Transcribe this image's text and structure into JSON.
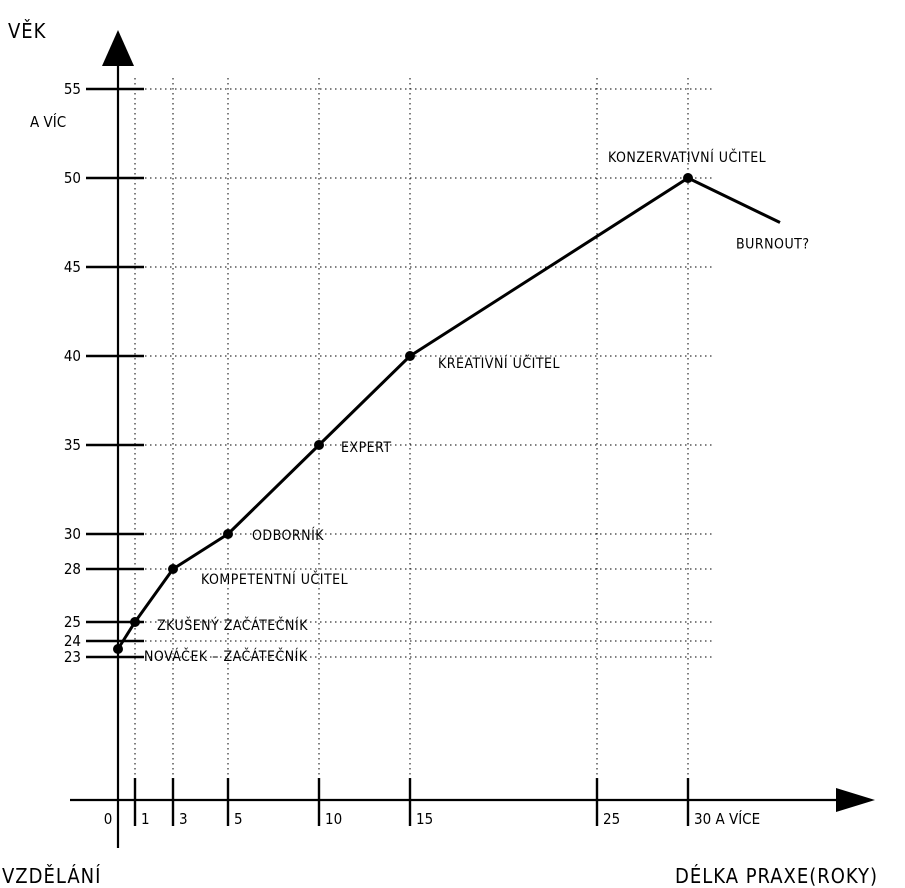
{
  "chart_data": {
    "type": "line",
    "ylabel": "VĚK",
    "xlabel": "DÉLKA PRAXE(ROKY)",
    "origin_label": "VZDĚLÁNÍ",
    "grid": true,
    "x_ticks": [
      {
        "value": 0,
        "label": "0"
      },
      {
        "value": 1,
        "label": "1"
      },
      {
        "value": 3,
        "label": "3"
      },
      {
        "value": 5,
        "label": "5"
      },
      {
        "value": 10,
        "label": "10"
      },
      {
        "value": 15,
        "label": "15"
      },
      {
        "value": 25,
        "label": "25"
      },
      {
        "value": 30,
        "label": "30 A VÍCE"
      }
    ],
    "y_ticks": [
      {
        "value": 23,
        "label": "23"
      },
      {
        "value": 24,
        "label": "24"
      },
      {
        "value": 25,
        "label": "25"
      },
      {
        "value": 28,
        "label": "28"
      },
      {
        "value": 30,
        "label": "30"
      },
      {
        "value": 35,
        "label": "35"
      },
      {
        "value": 40,
        "label": "40"
      },
      {
        "value": 45,
        "label": "45"
      },
      {
        "value": 50,
        "label": "50"
      },
      {
        "value": 55,
        "label": "55",
        "sublabel": "A VÍC"
      }
    ],
    "series": [
      {
        "points": [
          {
            "x": 0,
            "y": 23.5,
            "label": "NOVÁČEK – ZAČÁTEČNÍK"
          },
          {
            "x": 1,
            "y": 25,
            "label": "ZKUŠENÝ ZAČÁTEČNÍK"
          },
          {
            "x": 3,
            "y": 28,
            "label": "KOMPETENTNÍ UČITEL"
          },
          {
            "x": 5,
            "y": 30,
            "label": "ODBORNÍK"
          },
          {
            "x": 10,
            "y": 35,
            "label": "EXPERT"
          },
          {
            "x": 15,
            "y": 40,
            "label": "KREATIVNÍ UČITEL"
          },
          {
            "x": 30,
            "y": 50,
            "label": "KONZERVATIVNÍ UČITEL"
          },
          {
            "x": 35,
            "y": 47.5,
            "label": "BURNOUT?"
          }
        ]
      }
    ]
  }
}
